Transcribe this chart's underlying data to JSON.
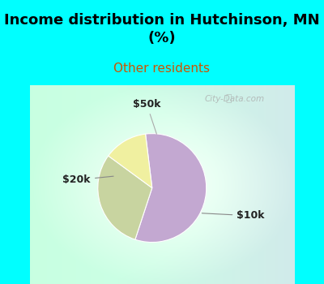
{
  "title": "Income distribution in Hutchinson, MN\n(%)",
  "subtitle": "Other residents",
  "slices": [
    {
      "label": "$10k",
      "value": 57,
      "color": "#C3A8D1"
    },
    {
      "label": "$20k",
      "value": 30,
      "color": "#C8D4A0"
    },
    {
      "label": "$50k",
      "value": 13,
      "color": "#F0F0A0"
    }
  ],
  "title_fontsize": 13,
  "subtitle_fontsize": 11,
  "label_fontsize": 9,
  "bg_color_top": "#00FFFF",
  "startangle": 97,
  "watermark": "City-Data.com"
}
